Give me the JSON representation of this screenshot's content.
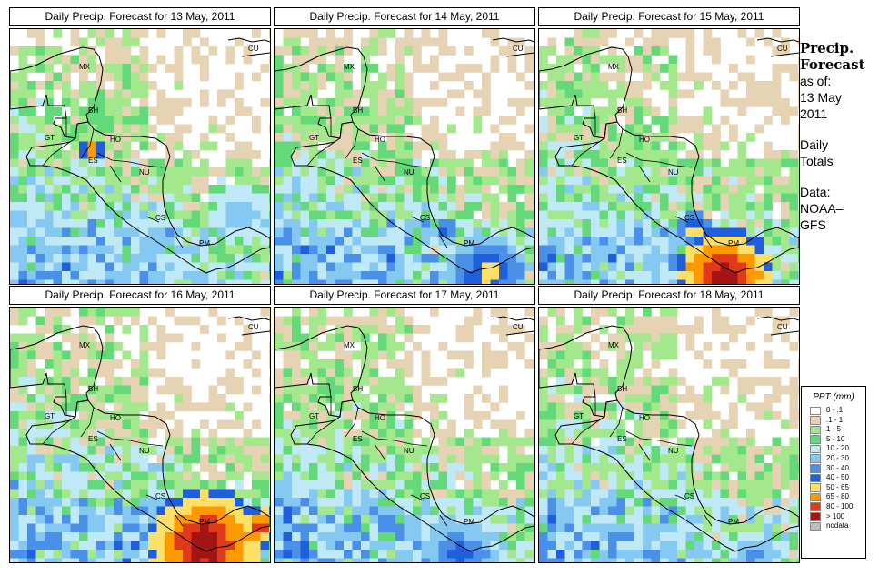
{
  "panels": [
    {
      "title": "Daily Precip. Forecast for  13 May, 2011",
      "seed": 11,
      "heavy": [
        {
          "cx": 85,
          "cy": 128,
          "r": 14,
          "v": 0.9
        },
        {
          "cx": 250,
          "cy": 200,
          "r": 40,
          "v": 0.45
        }
      ]
    },
    {
      "title": "Daily Precip. Forecast for  14 May, 2011",
      "seed": 23,
      "heavy": [
        {
          "cx": 230,
          "cy": 265,
          "r": 45,
          "v": 0.7
        },
        {
          "cx": 185,
          "cy": 215,
          "r": 12,
          "v": 0.7
        }
      ]
    },
    {
      "title": "Daily Precip. Forecast for  15 May, 2011",
      "seed": 37,
      "heavy": [
        {
          "cx": 200,
          "cy": 268,
          "r": 55,
          "v": 1.0
        },
        {
          "cx": 165,
          "cy": 215,
          "r": 20,
          "v": 0.75
        }
      ]
    },
    {
      "title": "Daily Precip. Forecast for  16 May, 2011",
      "seed": 41,
      "heavy": [
        {
          "cx": 210,
          "cy": 258,
          "r": 65,
          "v": 1.0
        },
        {
          "cx": 270,
          "cy": 235,
          "r": 25,
          "v": 0.9
        }
      ]
    },
    {
      "title": "Daily Precip. Forecast for  17 May, 2011",
      "seed": 53,
      "heavy": [
        {
          "cx": 200,
          "cy": 268,
          "r": 50,
          "v": 0.6
        }
      ]
    },
    {
      "title": "Daily Precip. Forecast for  18 May, 2011",
      "seed": 67,
      "heavy": [
        {
          "cx": 230,
          "cy": 270,
          "r": 30,
          "v": 0.55
        }
      ]
    }
  ],
  "country_labels": [
    {
      "code": "MX"
    },
    {
      "code": "CU"
    },
    {
      "code": "BH"
    },
    {
      "code": "GT"
    },
    {
      "code": "HO"
    },
    {
      "code": "ES"
    },
    {
      "code": "NU"
    },
    {
      "code": "CS"
    },
    {
      "code": "PM"
    }
  ],
  "sidebar": {
    "heading_1": "Precip.",
    "heading_2": "Forecast",
    "as_of_label": "as of:",
    "date_line_1": "13 May",
    "date_line_2": "2011",
    "totals_line_1": "Daily",
    "totals_line_2": "Totals",
    "source_line_1": "Data:",
    "source_line_2": "NOAA–",
    "source_line_3": "GFS"
  },
  "legend": {
    "title": "PPT (mm)",
    "classes": [
      {
        "label": "0 - .1",
        "color": "#ffffff"
      },
      {
        "label": ".1 - 1",
        "color": "#e6d3b3"
      },
      {
        "label": "1 - 5",
        "color": "#a3e88c"
      },
      {
        "label": "5 - 10",
        "color": "#63d97a"
      },
      {
        "label": "10 - 20",
        "color": "#bfe9f7"
      },
      {
        "label": "20 - 30",
        "color": "#85c9f2"
      },
      {
        "label": "30 - 40",
        "color": "#4a8fe8"
      },
      {
        "label": "40 - 50",
        "color": "#1f5fdc"
      },
      {
        "label": "50 - 65",
        "color": "#ffe066"
      },
      {
        "label": "65 - 80",
        "color": "#ff9900"
      },
      {
        "label": "80 - 100",
        "color": "#e03a1a"
      },
      {
        "label": "> 100",
        "color": "#a31515"
      },
      {
        "label": "nodata",
        "color": "#bdbdbd"
      }
    ]
  }
}
